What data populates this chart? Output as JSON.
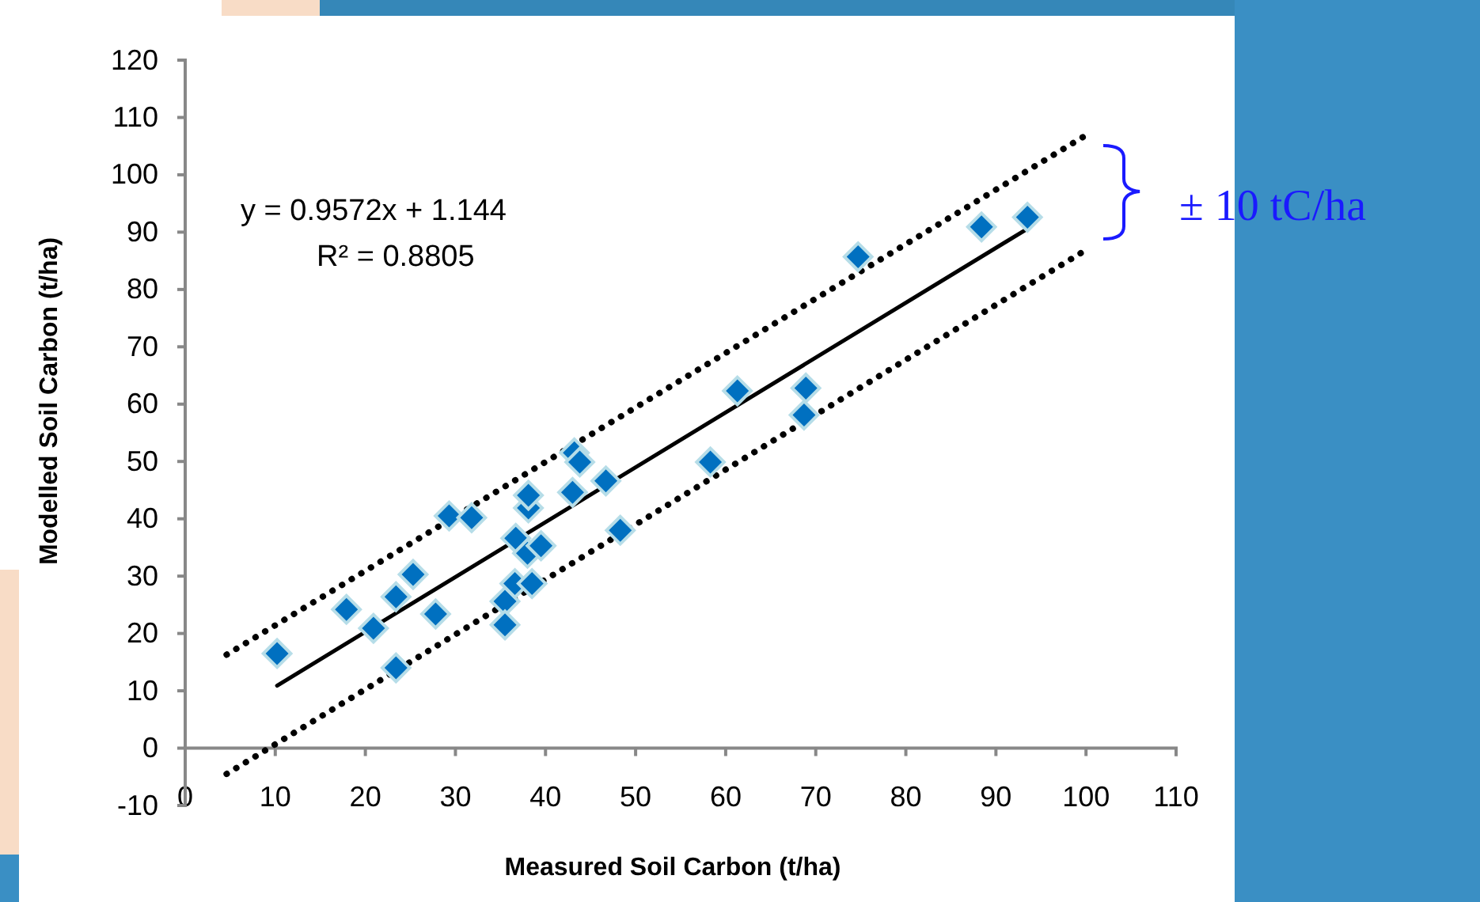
{
  "chart_data": {
    "type": "scatter",
    "xlabel": "Measured Soil Carbon (t/ha)",
    "ylabel": "Modelled Soil Carbon (t/ha)",
    "xlim": [
      0,
      110
    ],
    "xticks": [
      0,
      10,
      20,
      30,
      40,
      50,
      60,
      70,
      80,
      90,
      100,
      110
    ],
    "ylim": [
      -10,
      120
    ],
    "yticks": [
      -10,
      0,
      10,
      20,
      30,
      40,
      50,
      60,
      70,
      80,
      90,
      100,
      110,
      120
    ],
    "grid": false,
    "annotations": [
      "y = 0.9572x + 1.144",
      "R² = 0.8805",
      "± 10 tC/ha"
    ],
    "series": [
      {
        "color": "#0070c0",
        "marker": "diamond",
        "x": [
          10.2,
          17.9,
          20.9,
          23.4,
          23.4,
          25.3,
          27.8,
          29.3,
          31.8,
          35.5,
          35.5,
          36.6,
          36.7,
          38,
          38.1,
          38.1,
          38.5,
          39.5,
          43.2,
          43,
          43.8,
          46.7,
          48.3,
          58.3,
          61.3,
          68.7,
          68.9,
          74.7,
          88.4,
          93.5
        ],
        "values": [
          16.5,
          24.2,
          20.9,
          26.4,
          14,
          30.3,
          23.4,
          40.5,
          40.2,
          25.6,
          21.5,
          28.7,
          36.6,
          34,
          41.9,
          44.1,
          28.7,
          35.3,
          51.5,
          44.6,
          49.9,
          46.6,
          38,
          49.9,
          62.3,
          58.1,
          62.8,
          85.7,
          90.9,
          92.6
        ]
      },
      {
        "type": "line",
        "color": "#000000",
        "marker": "none",
        "line_style": "solid",
        "x": [
          10.2,
          93.5
        ],
        "values": [
          10.9,
          90.6
        ]
      },
      {
        "type": "line",
        "color": "#000000",
        "marker": "none",
        "line_style": "dotted",
        "x": [
          4.6,
          100
        ],
        "values": [
          16.3,
          106.9
        ]
      },
      {
        "type": "line",
        "color": "#000000",
        "marker": "none",
        "line_style": "dotted",
        "x": [
          4.6,
          100
        ],
        "values": [
          -4.5,
          86.9
        ]
      }
    ]
  }
}
